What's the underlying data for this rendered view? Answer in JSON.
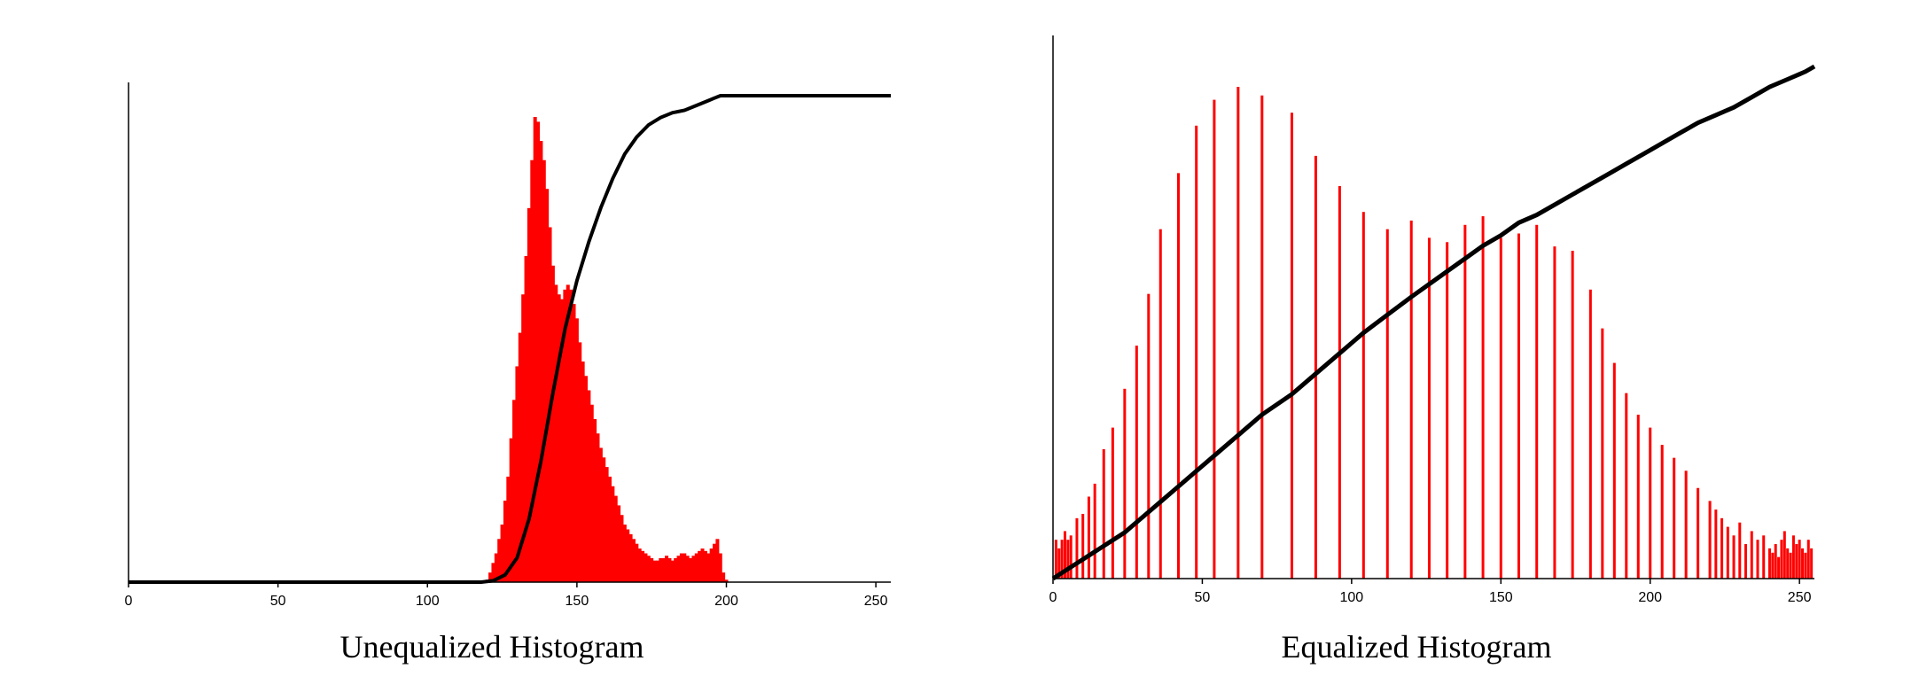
{
  "chart_data": [
    {
      "type": "bar",
      "title": "Unequalized Histogram",
      "xlim": [
        0,
        255
      ],
      "xticks": [
        0,
        50,
        100,
        150,
        200,
        250
      ],
      "grid": false,
      "colors": {
        "bars": "#ff0000",
        "cdf": "#000000"
      },
      "series": [
        {
          "kind": "histogram",
          "bins_x": [
            120,
            121,
            122,
            123,
            124,
            125,
            126,
            127,
            128,
            129,
            130,
            131,
            132,
            133,
            134,
            135,
            136,
            137,
            138,
            139,
            140,
            141,
            142,
            143,
            144,
            145,
            146,
            147,
            148,
            149,
            150,
            151,
            152,
            153,
            154,
            155,
            156,
            157,
            158,
            159,
            160,
            161,
            162,
            163,
            164,
            165,
            166,
            167,
            168,
            169,
            170,
            171,
            172,
            173,
            174,
            175,
            176,
            177,
            178,
            179,
            180,
            181,
            182,
            183,
            184,
            185,
            186,
            187,
            188,
            189,
            190,
            191,
            192,
            193,
            194,
            195,
            196,
            197,
            198,
            199,
            200
          ],
          "values": [
            0.5,
            2,
            4,
            6,
            9,
            12,
            17,
            22,
            30,
            38,
            45,
            52,
            60,
            68,
            78,
            88,
            97,
            96,
            92,
            88,
            82,
            74,
            66,
            62,
            60,
            59,
            61,
            62,
            61,
            58,
            55,
            50,
            46,
            43,
            40,
            37,
            34,
            31,
            28,
            26,
            24,
            22,
            20,
            18,
            16,
            14,
            12,
            11,
            10,
            9,
            8,
            7,
            6.5,
            6,
            5.5,
            5,
            4.5,
            4.5,
            5,
            5,
            5.5,
            5,
            4.5,
            5,
            5.5,
            6,
            6,
            5.5,
            5,
            5.5,
            6,
            6.5,
            7,
            6.5,
            6,
            7,
            8,
            9,
            6,
            2,
            0.5
          ]
        },
        {
          "kind": "cdf_line",
          "x": [
            0,
            118,
            122,
            126,
            130,
            134,
            138,
            142,
            146,
            150,
            154,
            158,
            162,
            166,
            170,
            174,
            178,
            182,
            186,
            190,
            194,
            196,
            198,
            200,
            255
          ],
          "y": [
            0,
            0,
            0.3,
            1.5,
            5,
            13,
            25,
            39,
            52,
            62,
            70,
            77,
            83,
            88,
            91.5,
            94,
            95.5,
            96.5,
            97,
            98,
            99,
            99.5,
            100,
            100,
            100
          ]
        }
      ]
    },
    {
      "type": "bar",
      "title": "Equalized Histogram",
      "xlim": [
        0,
        255
      ],
      "xticks": [
        0,
        50,
        100,
        150,
        200,
        250
      ],
      "grid": false,
      "colors": {
        "bars": "#ff0000",
        "cdf": "#000000"
      },
      "series": [
        {
          "kind": "histogram",
          "bins_x": [
            1,
            2,
            3,
            4,
            5,
            6,
            8,
            10,
            12,
            14,
            17,
            20,
            24,
            28,
            32,
            36,
            42,
            48,
            54,
            62,
            70,
            80,
            88,
            96,
            104,
            112,
            120,
            126,
            132,
            138,
            144,
            150,
            156,
            162,
            168,
            174,
            180,
            184,
            188,
            192,
            196,
            200,
            204,
            208,
            212,
            216,
            220,
            222,
            224,
            226,
            228,
            230,
            232,
            234,
            236,
            238,
            240,
            241,
            242,
            243,
            244,
            245,
            246,
            247,
            248,
            249,
            250,
            251,
            252,
            253,
            254
          ],
          "values": [
            9,
            7,
            9,
            11,
            9,
            10,
            14,
            15,
            19,
            22,
            30,
            35,
            44,
            54,
            66,
            81,
            94,
            105,
            111,
            114,
            112,
            108,
            98,
            91,
            85,
            81,
            83,
            79,
            78,
            82,
            84,
            79,
            80,
            82,
            77,
            76,
            67,
            58,
            50,
            43,
            38,
            35,
            31,
            28,
            25,
            21,
            18,
            16,
            14,
            12,
            10,
            13,
            8,
            11,
            9,
            10,
            7,
            6,
            8,
            5,
            9,
            11,
            7,
            6,
            10,
            8,
            9,
            7,
            6,
            9,
            7
          ]
        },
        {
          "kind": "cdf_line",
          "x": [
            0,
            4,
            8,
            12,
            16,
            20,
            24,
            28,
            32,
            36,
            42,
            48,
            54,
            62,
            70,
            80,
            88,
            96,
            104,
            112,
            120,
            126,
            132,
            138,
            144,
            150,
            156,
            162,
            168,
            174,
            180,
            186,
            192,
            198,
            204,
            210,
            216,
            222,
            228,
            234,
            240,
            246,
            252,
            255
          ],
          "y": [
            0,
            1.5,
            3,
            4.5,
            6,
            7.5,
            9,
            11,
            13,
            15,
            18,
            21,
            24,
            28,
            32,
            36,
            40,
            44,
            48,
            51.5,
            55,
            57.5,
            60,
            62.5,
            65,
            67,
            69.5,
            71,
            73,
            75,
            77,
            79,
            81,
            83,
            85,
            87,
            89,
            90.5,
            92,
            94,
            96,
            97.5,
            99,
            100
          ]
        }
      ]
    }
  ]
}
